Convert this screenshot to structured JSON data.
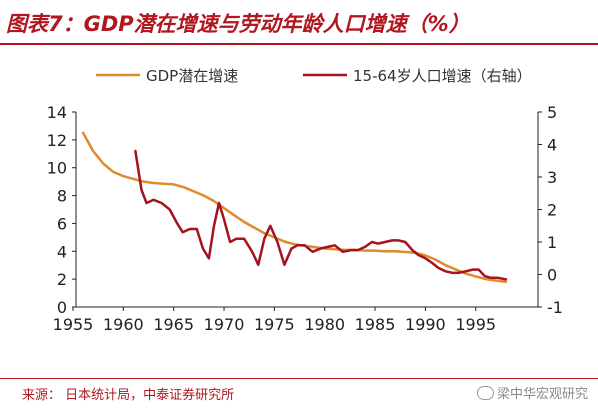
{
  "header": {
    "title": "图表7：GDP潜在增速与劳动年龄人口增速（%）"
  },
  "footer": {
    "source": "来源：   日本统计局，中泰证券研究所",
    "watermark": "梁中华宏观研究"
  },
  "colors": {
    "title": "#b0171f",
    "series_gdp": "#e08a2e",
    "series_labor": "#a3141e",
    "axis": "#222222"
  },
  "chart_data": {
    "type": "line",
    "x_ticks": [
      "1955",
      "1960",
      "1965",
      "1970",
      "1975",
      "1980",
      "1985",
      "1990",
      "1995"
    ],
    "y_left_ticks": [
      "0",
      "2",
      "4",
      "6",
      "8",
      "10",
      "12",
      "14"
    ],
    "y_right_ticks": [
      "-1",
      "0",
      "1",
      "2",
      "3",
      "4",
      "5"
    ],
    "xlim": [
      1955,
      1999
    ],
    "ylim_left": [
      0,
      14
    ],
    "ylim_right": [
      -1,
      5
    ],
    "legend_position": "top",
    "series": [
      {
        "name": "GDP潜在增速",
        "axis": "left",
        "color": "#e08a2e",
        "x": [
          1956,
          1957,
          1958,
          1959,
          1960,
          1961,
          1962,
          1963,
          1964,
          1965,
          1966,
          1967,
          1968,
          1969,
          1970,
          1971,
          1972,
          1973,
          1974,
          1975,
          1976,
          1977,
          1978,
          1979,
          1980,
          1981,
          1982,
          1983,
          1984,
          1985,
          1986,
          1987,
          1988,
          1989,
          1990,
          1991,
          1992,
          1993,
          1994,
          1995,
          1996,
          1997,
          1998
        ],
        "y": [
          12.5,
          11.2,
          10.3,
          9.7,
          9.4,
          9.2,
          9.0,
          8.9,
          8.85,
          8.8,
          8.6,
          8.3,
          8.0,
          7.6,
          7.1,
          6.6,
          6.1,
          5.7,
          5.3,
          5.0,
          4.7,
          4.5,
          4.4,
          4.3,
          4.2,
          4.15,
          4.1,
          4.1,
          4.05,
          4.05,
          4.0,
          4.0,
          3.95,
          3.9,
          3.7,
          3.4,
          3.0,
          2.7,
          2.4,
          2.2,
          2.0,
          1.9,
          1.8
        ]
      },
      {
        "name": "15-64岁人口增速（右轴）",
        "axis": "right",
        "color": "#a3141e",
        "x": [
          1961.2,
          1961.8,
          1962.3,
          1963.0,
          1963.8,
          1964.6,
          1965.3,
          1965.9,
          1966.6,
          1967.3,
          1967.9,
          1968.5,
          1969.0,
          1969.5,
          1970.0,
          1970.6,
          1971.2,
          1972.0,
          1972.8,
          1973.4,
          1974.0,
          1974.6,
          1975.3,
          1976.0,
          1976.7,
          1977.3,
          1978.0,
          1978.8,
          1979.6,
          1980.3,
          1981.0,
          1981.8,
          1982.6,
          1983.3,
          1984.0,
          1984.7,
          1985.3,
          1986.0,
          1986.7,
          1987.3,
          1988.0,
          1988.7,
          1989.3,
          1990.0,
          1990.7,
          1991.3,
          1992.0,
          1992.7,
          1993.3,
          1994.0,
          1994.7,
          1995.3,
          1995.9,
          1996.5,
          1997.2,
          1998.0
        ],
        "y": [
          3.8,
          2.6,
          2.2,
          2.3,
          2.2,
          2.0,
          1.6,
          1.3,
          1.4,
          1.4,
          0.8,
          0.5,
          1.5,
          2.2,
          1.7,
          1.0,
          1.1,
          1.1,
          0.7,
          0.3,
          1.1,
          1.5,
          1.0,
          0.3,
          0.8,
          0.9,
          0.9,
          0.7,
          0.8,
          0.85,
          0.9,
          0.7,
          0.75,
          0.75,
          0.85,
          1.0,
          0.95,
          1.0,
          1.05,
          1.05,
          1.0,
          0.75,
          0.6,
          0.5,
          0.35,
          0.2,
          0.1,
          0.05,
          0.05,
          0.1,
          0.15,
          0.15,
          -0.05,
          -0.1,
          -0.1,
          -0.15
        ]
      }
    ]
  }
}
